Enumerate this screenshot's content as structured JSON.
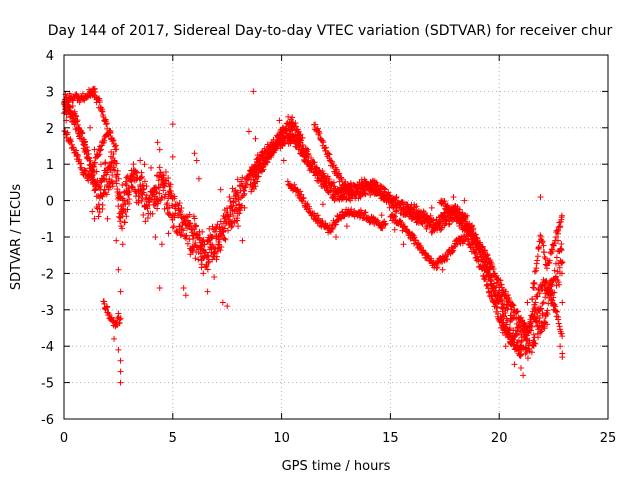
{
  "chart_data": {
    "type": "scatter",
    "title": "Day 144 of 2017, Sidereal Day-to-day VTEC variation (SDTVAR) for receiver chur",
    "xlabel": "GPS time / hours",
    "ylabel": "SDTVAR / TECUs",
    "xlim": [
      0,
      25
    ],
    "ylim": [
      -6,
      4
    ],
    "xticks": [
      0,
      5,
      10,
      15,
      20,
      25
    ],
    "yticks": [
      -6,
      -5,
      -4,
      -3,
      -2,
      -1,
      0,
      1,
      2,
      3,
      4
    ],
    "xtick_labels": [
      "0",
      "5",
      "10",
      "15",
      "20",
      "25"
    ],
    "ytick_labels": [
      "-6",
      "-5",
      "-4",
      "-3",
      "-2",
      "-1",
      "0",
      "1",
      "2",
      "3",
      "4"
    ],
    "grid": true,
    "marker": "+",
    "color": "#ff0000",
    "series": [
      {
        "name": "SDTVAR",
        "trend": [
          [
            0.0,
            2.6
          ],
          [
            0.3,
            2.4
          ],
          [
            0.6,
            2.1
          ],
          [
            0.9,
            1.6
          ],
          [
            1.2,
            1.0
          ],
          [
            1.4,
            0.5
          ],
          [
            1.6,
            0.0
          ],
          [
            1.8,
            0.3
          ],
          [
            2.0,
            0.6
          ],
          [
            2.2,
            0.9
          ],
          [
            2.4,
            0.8
          ],
          [
            2.6,
            -0.3
          ],
          [
            2.9,
            0.2
          ],
          [
            3.2,
            0.6
          ],
          [
            3.5,
            0.3
          ],
          [
            3.8,
            -0.2
          ],
          [
            4.1,
            0.0
          ],
          [
            4.4,
            0.5
          ],
          [
            4.7,
            0.2
          ],
          [
            5.0,
            -0.3
          ],
          [
            5.5,
            -0.8
          ],
          [
            6.0,
            -1.0
          ],
          [
            6.4,
            -1.5
          ],
          [
            6.8,
            -1.3
          ],
          [
            7.2,
            -1.0
          ],
          [
            7.6,
            -0.4
          ],
          [
            8.0,
            0.0
          ],
          [
            8.5,
            0.6
          ],
          [
            9.0,
            1.1
          ],
          [
            9.5,
            1.4
          ],
          [
            10.0,
            1.7
          ],
          [
            10.5,
            1.8
          ],
          [
            11.0,
            1.3
          ],
          [
            11.5,
            0.9
          ],
          [
            12.0,
            0.5
          ],
          [
            12.5,
            0.2
          ],
          [
            13.0,
            0.2
          ],
          [
            13.5,
            0.3
          ],
          [
            14.0,
            0.4
          ],
          [
            14.5,
            0.3
          ],
          [
            15.0,
            0.0
          ],
          [
            15.5,
            -0.2
          ],
          [
            16.0,
            -0.3
          ],
          [
            16.5,
            -0.5
          ],
          [
            17.0,
            -0.7
          ],
          [
            17.5,
            -0.5
          ],
          [
            18.0,
            -0.3
          ],
          [
            18.5,
            -0.6
          ],
          [
            19.0,
            -1.2
          ],
          [
            19.5,
            -1.9
          ],
          [
            20.0,
            -2.8
          ],
          [
            20.5,
            -3.5
          ],
          [
            21.0,
            -3.9
          ],
          [
            21.5,
            -3.7
          ],
          [
            22.0,
            -3.2
          ],
          [
            22.5,
            -2.3
          ],
          [
            22.9,
            -1.5
          ]
        ],
        "secondary_trends": [
          [
            [
              0.0,
              2.0
            ],
            [
              0.3,
              1.6
            ],
            [
              0.6,
              1.2
            ],
            [
              0.9,
              0.8
            ],
            [
              1.2,
              0.6
            ],
            [
              1.5,
              1.2
            ],
            [
              1.8,
              1.6
            ],
            [
              2.1,
              1.9
            ],
            [
              2.4,
              1.4
            ]
          ],
          [
            [
              0.0,
              2.8
            ],
            [
              0.4,
              2.85
            ],
            [
              0.8,
              2.8
            ],
            [
              1.1,
              2.95
            ],
            [
              1.4,
              3.0
            ],
            [
              1.7,
              2.6
            ],
            [
              2.0,
              2.0
            ]
          ],
          [
            [
              1.8,
              -2.8
            ],
            [
              2.0,
              -3.0
            ],
            [
              2.2,
              -3.3
            ],
            [
              2.4,
              -3.4
            ],
            [
              2.6,
              -3.2
            ]
          ],
          [
            [
              8.6,
              0.2
            ],
            [
              9.0,
              0.8
            ],
            [
              9.5,
              1.3
            ],
            [
              10.0,
              1.9
            ],
            [
              10.5,
              2.2
            ],
            [
              11.0,
              1.6
            ]
          ],
          [
            [
              10.3,
              0.5
            ],
            [
              10.8,
              0.2
            ],
            [
              11.3,
              -0.3
            ],
            [
              11.8,
              -0.6
            ],
            [
              12.2,
              -0.8
            ],
            [
              12.7,
              -0.4
            ],
            [
              13.2,
              -0.3
            ],
            [
              13.8,
              -0.4
            ],
            [
              14.3,
              -0.6
            ],
            [
              14.8,
              -0.7
            ]
          ],
          [
            [
              11.5,
              2.1
            ],
            [
              11.8,
              1.7
            ],
            [
              12.1,
              1.3
            ],
            [
              12.4,
              0.9
            ],
            [
              12.8,
              0.5
            ],
            [
              13.3,
              0.2
            ]
          ],
          [
            [
              15.0,
              -0.4
            ],
            [
              15.5,
              -0.7
            ],
            [
              16.0,
              -1.0
            ],
            [
              16.5,
              -1.4
            ],
            [
              17.0,
              -1.8
            ],
            [
              17.5,
              -1.6
            ],
            [
              18.0,
              -1.2
            ],
            [
              18.5,
              -1.0
            ],
            [
              19.0,
              -1.6
            ],
            [
              19.5,
              -2.4
            ],
            [
              20.0,
              -3.2
            ],
            [
              20.5,
              -3.8
            ],
            [
              21.0,
              -4.2
            ]
          ],
          [
            [
              17.3,
              0.0
            ],
            [
              17.8,
              -0.3
            ],
            [
              18.3,
              -0.7
            ],
            [
              18.8,
              -1.0
            ],
            [
              19.3,
              -1.4
            ],
            [
              19.8,
              -2.0
            ],
            [
              20.3,
              -2.6
            ],
            [
              20.8,
              -3.1
            ],
            [
              21.3,
              -3.6
            ]
          ],
          [
            [
              21.2,
              -4.0
            ],
            [
              21.5,
              -3.2
            ],
            [
              21.8,
              -2.5
            ],
            [
              22.1,
              -2.2
            ],
            [
              22.4,
              -2.6
            ],
            [
              22.7,
              -3.2
            ],
            [
              22.9,
              -3.8
            ]
          ],
          [
            [
              21.5,
              -2.7
            ],
            [
              21.8,
              -1.4
            ],
            [
              21.9,
              -0.9
            ],
            [
              22.2,
              -1.8
            ],
            [
              22.6,
              -1.0
            ],
            [
              22.9,
              -0.5
            ]
          ]
        ],
        "outliers": [
          [
            0.0,
            2.4
          ],
          [
            0.05,
            2.6
          ],
          [
            0.1,
            2.2
          ],
          [
            0.2,
            2.7
          ],
          [
            0.4,
            2.6
          ],
          [
            0.6,
            2.85
          ],
          [
            0.9,
            2.8
          ],
          [
            1.1,
            2.9
          ],
          [
            1.2,
            3.0
          ],
          [
            1.3,
            3.05
          ],
          [
            1.4,
            2.85
          ],
          [
            1.5,
            2.7
          ],
          [
            1.6,
            2.55
          ],
          [
            1.2,
            2.0
          ],
          [
            1.4,
            1.4
          ],
          [
            1.5,
            0.8
          ],
          [
            1.3,
            -0.3
          ],
          [
            1.4,
            -0.5
          ],
          [
            1.6,
            -0.1
          ],
          [
            1.7,
            1.0
          ],
          [
            2.0,
            -0.5
          ],
          [
            2.4,
            -1.1
          ],
          [
            2.5,
            -1.9
          ],
          [
            2.6,
            -2.5
          ],
          [
            2.5,
            -3.1
          ],
          [
            2.3,
            -3.8
          ],
          [
            2.5,
            -4.1
          ],
          [
            2.6,
            -4.4
          ],
          [
            2.6,
            -4.7
          ],
          [
            2.6,
            -5.0
          ],
          [
            2.7,
            -1.2
          ],
          [
            2.8,
            -0.6
          ],
          [
            3.3,
            0.8
          ],
          [
            3.5,
            1.1
          ],
          [
            3.7,
            1.0
          ],
          [
            4.0,
            0.9
          ],
          [
            4.3,
            1.6
          ],
          [
            4.4,
            1.4
          ],
          [
            4.2,
            -1.0
          ],
          [
            4.5,
            -1.2
          ],
          [
            4.4,
            -2.4
          ],
          [
            4.8,
            -0.9
          ],
          [
            5.0,
            -0.4
          ],
          [
            5.0,
            1.2
          ],
          [
            5.0,
            2.1
          ],
          [
            5.2,
            -0.1
          ],
          [
            5.5,
            -2.4
          ],
          [
            5.6,
            -2.6
          ],
          [
            6.0,
            1.3
          ],
          [
            6.1,
            1.1
          ],
          [
            6.2,
            0.6
          ],
          [
            6.4,
            -2.0
          ],
          [
            6.6,
            -2.5
          ],
          [
            6.9,
            -2.1
          ],
          [
            7.0,
            -1.0
          ],
          [
            7.3,
            -2.8
          ],
          [
            7.5,
            -2.9
          ],
          [
            7.2,
            0.3
          ],
          [
            7.6,
            0.1
          ],
          [
            8.0,
            -0.7
          ],
          [
            8.2,
            -1.1
          ],
          [
            8.5,
            1.9
          ],
          [
            8.7,
            3.0
          ],
          [
            8.8,
            1.7
          ],
          [
            9.1,
            0.8
          ],
          [
            8.3,
            -0.2
          ],
          [
            9.9,
            2.2
          ],
          [
            10.3,
            2.3
          ],
          [
            10.1,
            1.1
          ],
          [
            11.2,
            1.4
          ],
          [
            11.7,
            1.9
          ],
          [
            11.4,
            -0.4
          ],
          [
            11.9,
            -0.1
          ],
          [
            12.5,
            -1.0
          ],
          [
            13.0,
            -0.7
          ],
          [
            13.7,
            0.5
          ],
          [
            14.2,
            0.55
          ],
          [
            14.6,
            -0.4
          ],
          [
            15.2,
            -0.8
          ],
          [
            15.6,
            -1.2
          ],
          [
            16.2,
            -0.6
          ],
          [
            16.9,
            -0.2
          ],
          [
            17.4,
            -1.9
          ],
          [
            17.9,
            0.1
          ],
          [
            18.4,
            0.0
          ],
          [
            18.8,
            -0.8
          ],
          [
            19.6,
            -2.2
          ],
          [
            20.3,
            -4.0
          ],
          [
            20.7,
            -4.5
          ],
          [
            21.0,
            -4.6
          ],
          [
            21.1,
            -4.8
          ],
          [
            21.0,
            -3.5
          ],
          [
            21.3,
            -2.8
          ],
          [
            21.6,
            -2.4
          ],
          [
            21.8,
            -1.3
          ],
          [
            21.9,
            0.1
          ],
          [
            22.2,
            -3.4
          ],
          [
            22.5,
            -3.0
          ],
          [
            22.8,
            -4.0
          ],
          [
            22.9,
            -4.2
          ],
          [
            22.9,
            -4.3
          ],
          [
            22.9,
            -2.8
          ],
          [
            22.9,
            -1.7
          ],
          [
            22.8,
            -0.7
          ],
          [
            22.7,
            -1.1
          ]
        ]
      }
    ]
  }
}
